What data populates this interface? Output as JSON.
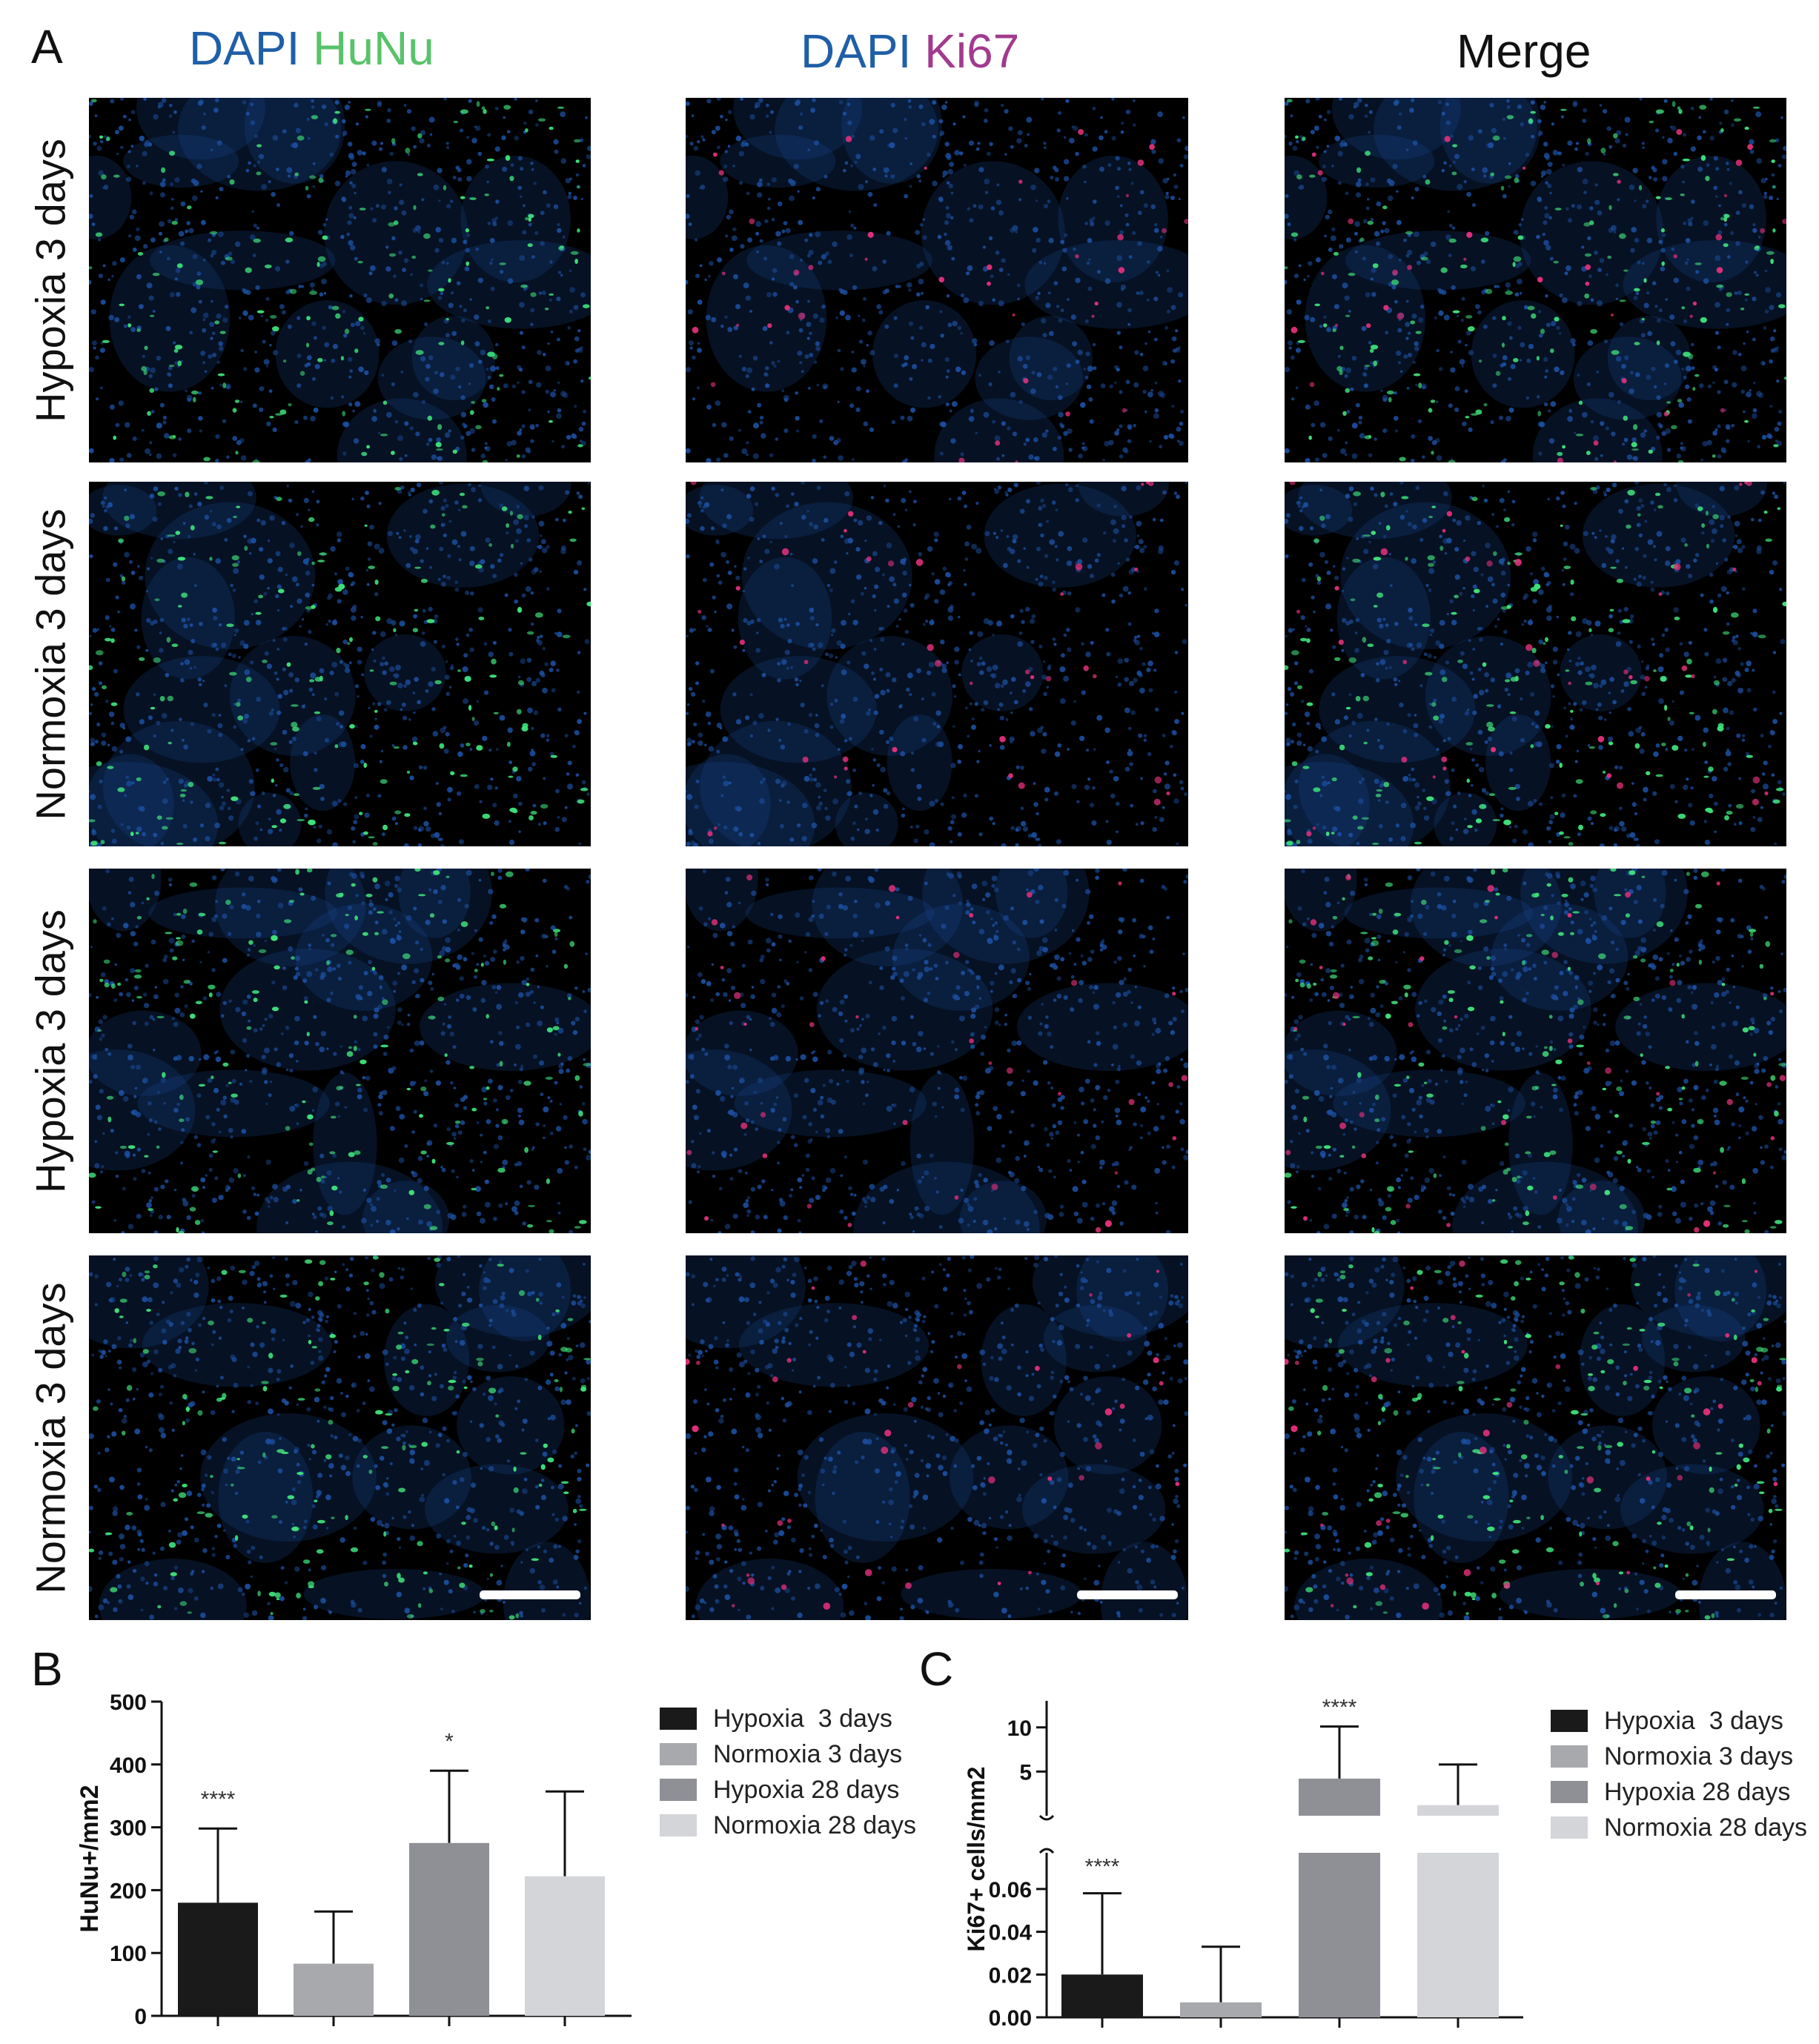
{
  "panel_a": {
    "letter": "A",
    "column_titles": [
      {
        "parts": [
          {
            "text": "DAPI",
            "color": "#1f5fa8"
          },
          {
            "text": " "
          },
          {
            "text": "HuNu",
            "color": "#58c36a"
          }
        ]
      },
      {
        "parts": [
          {
            "text": "DAPI",
            "color": "#1f5fa8"
          },
          {
            "text": " "
          },
          {
            "text": "Ki67",
            "color": "#a23a8e"
          }
        ]
      },
      {
        "parts": [
          {
            "text": "Merge",
            "color": "#111111"
          }
        ]
      }
    ],
    "row_labels": [
      "Hypoxia 3 days",
      "Normoxia 3 days",
      "Hypoxia 3 days",
      "Normoxia 3 days"
    ],
    "colors": {
      "dapi": "#1b4fa0",
      "hunu": "#3ee07a",
      "ki67": "#e0307a",
      "background": "#000000"
    }
  },
  "panel_b": {
    "letter": "B",
    "chart_data": {
      "type": "bar",
      "ylabel": "HuNu+/mm2",
      "ylim": [
        0,
        500
      ],
      "yticks": [
        0,
        100,
        200,
        300,
        400,
        500
      ],
      "categories": [
        "Hypoxia  3 days",
        "Normoxia 3 days",
        "Hypoxia 28 days",
        "Normoxia 28 days"
      ],
      "values": [
        180,
        83,
        275,
        222
      ],
      "error_upper": [
        298,
        166,
        390,
        357
      ],
      "significance": [
        "****",
        "",
        "*",
        ""
      ],
      "colors": [
        "#1a1a1a",
        "#a7a9ac",
        "#8e9096",
        "#d3d5d8"
      ],
      "legend_position": "right"
    }
  },
  "panel_c": {
    "letter": "C",
    "chart_data": {
      "type": "bar",
      "ylabel": "Ki67+ cells/mm2",
      "broken_axis": true,
      "lower_ylim": [
        0,
        0.07
      ],
      "lower_yticks": [
        "0.00",
        "0.02",
        "0.04",
        "0.06"
      ],
      "upper_ylim": [
        0,
        13
      ],
      "upper_yticks": [
        "5",
        "10"
      ],
      "categories": [
        "Hypoxia  3 days",
        "Normoxia 3 days",
        "Hypoxia 28 days",
        "Normoxia 28 days"
      ],
      "values": [
        0.02,
        0.007,
        4.2,
        1.2
      ],
      "error_upper": [
        0.058,
        0.033,
        10.1,
        5.8
      ],
      "significance": [
        "****",
        "",
        "****",
        ""
      ],
      "colors": [
        "#1a1a1a",
        "#a7a9ac",
        "#8e9096",
        "#d3d5d8"
      ],
      "legend_position": "right"
    }
  }
}
